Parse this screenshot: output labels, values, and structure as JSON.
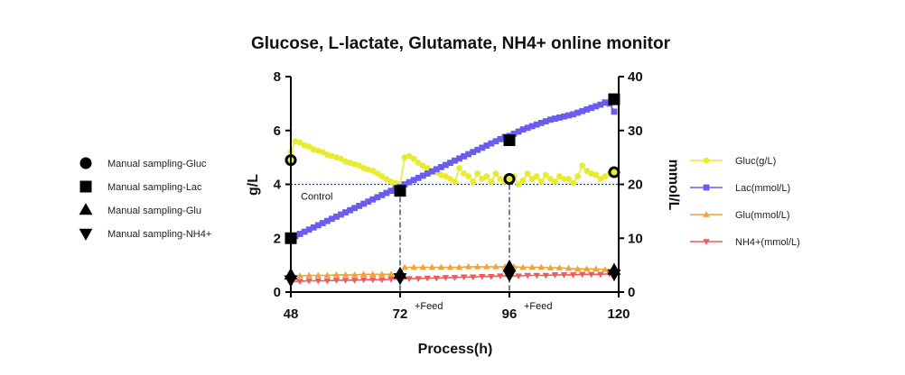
{
  "chart_data": {
    "type": "line",
    "title": "Glucose, L-lactate, Glutamate, NH4+ online monitor",
    "xlabel": "Process(h)",
    "ylabel_left": "g/L",
    "ylabel_right": "mmol/L",
    "xlim": [
      48,
      120
    ],
    "ylim_left": [
      0,
      8
    ],
    "ylim_right": [
      0,
      40
    ],
    "x_ticks": [
      "48",
      "72",
      "96",
      "120"
    ],
    "y_ticks_left": [
      "0",
      "2",
      "4",
      "6",
      "8"
    ],
    "y_ticks_right": [
      "0",
      "10",
      "20",
      "30",
      "40"
    ],
    "grid": false,
    "legend_position": "right",
    "annotations": {
      "control_label": "Control",
      "control_level_gL": 4,
      "feed_label_1": "+Feed",
      "feed_label_2": "+Feed",
      "feed_times_h": [
        72,
        96
      ]
    },
    "series": [
      {
        "name": "Gluc(g/L)",
        "axis": "left",
        "color": "#e8ec2e",
        "marker": "circle",
        "x": [
          48,
          49,
          50,
          51,
          52,
          53,
          54,
          55,
          56,
          57,
          58,
          59,
          60,
          61,
          62,
          63,
          64,
          65,
          66,
          67,
          68,
          69,
          70,
          71,
          72,
          73,
          74,
          75,
          76,
          77,
          78,
          79,
          80,
          81,
          82,
          83,
          84,
          85,
          86,
          87,
          88,
          89,
          90,
          91,
          92,
          93,
          94,
          95,
          96,
          97,
          98,
          99,
          100,
          101,
          102,
          103,
          104,
          105,
          106,
          107,
          108,
          109,
          110,
          111,
          112,
          113,
          114,
          115,
          116,
          117,
          118,
          119
        ],
        "values": [
          5.2,
          5.6,
          5.55,
          5.45,
          5.4,
          5.3,
          5.25,
          5.2,
          5.1,
          5.05,
          5.0,
          4.95,
          4.85,
          4.8,
          4.75,
          4.7,
          4.6,
          4.55,
          4.5,
          4.4,
          4.3,
          4.2,
          4.1,
          4.05,
          4.0,
          5.0,
          5.05,
          4.95,
          4.8,
          4.7,
          4.6,
          4.5,
          4.45,
          4.35,
          4.3,
          4.2,
          4.1,
          4.6,
          4.4,
          4.3,
          4.1,
          4.4,
          4.2,
          4.3,
          4.1,
          4.4,
          4.2,
          4.1,
          4.2,
          4.3,
          4.0,
          4.15,
          4.4,
          4.2,
          4.3,
          4.1,
          4.35,
          4.2,
          4.1,
          4.3,
          4.2,
          4.2,
          4.05,
          4.3,
          4.7,
          4.5,
          4.4,
          4.35,
          4.2,
          4.3,
          4.4,
          4.5
        ]
      },
      {
        "name": "Lac(mmol/L)",
        "axis": "right",
        "color": "#6b5cf0",
        "marker": "square",
        "x": [
          48,
          49,
          50,
          51,
          52,
          53,
          54,
          55,
          56,
          57,
          58,
          59,
          60,
          61,
          62,
          63,
          64,
          65,
          66,
          67,
          68,
          69,
          70,
          71,
          72,
          73,
          74,
          75,
          76,
          77,
          78,
          79,
          80,
          81,
          82,
          83,
          84,
          85,
          86,
          87,
          88,
          89,
          90,
          91,
          92,
          93,
          94,
          95,
          96,
          97,
          98,
          99,
          100,
          101,
          102,
          103,
          104,
          105,
          106,
          107,
          108,
          109,
          110,
          111,
          112,
          113,
          114,
          115,
          116,
          117,
          118,
          119
        ],
        "values": [
          10.0,
          10.4,
          10.8,
          11.2,
          11.6,
          12.0,
          12.4,
          12.8,
          13.2,
          13.6,
          14.0,
          14.4,
          14.8,
          15.2,
          15.6,
          16.0,
          16.4,
          16.8,
          17.2,
          17.6,
          18.0,
          18.4,
          18.8,
          19.2,
          19.5,
          20.0,
          20.4,
          20.8,
          21.2,
          21.6,
          22.0,
          22.4,
          22.8,
          23.2,
          23.6,
          24.0,
          24.4,
          24.8,
          25.2,
          25.6,
          26.0,
          26.4,
          26.8,
          27.2,
          27.6,
          28.0,
          28.4,
          28.8,
          29.0,
          29.4,
          29.8,
          30.2,
          30.5,
          30.8,
          31.1,
          31.4,
          31.7,
          32.0,
          32.2,
          32.4,
          32.6,
          32.8,
          33.0,
          33.3,
          33.6,
          33.9,
          34.2,
          34.5,
          34.8,
          35.2,
          35.0,
          33.5
        ]
      },
      {
        "name": "Glu(mmol/L)",
        "axis": "right",
        "color": "#f2a23c",
        "marker": "triangle-up",
        "x": [
          48,
          50,
          52,
          54,
          56,
          58,
          60,
          62,
          64,
          66,
          68,
          70,
          72,
          73,
          75,
          77,
          79,
          81,
          83,
          85,
          87,
          89,
          91,
          93,
          95,
          97,
          99,
          101,
          103,
          105,
          107,
          109,
          111,
          113,
          115,
          117,
          119
        ],
        "values": [
          3.0,
          3.0,
          3.1,
          3.1,
          3.1,
          3.2,
          3.2,
          3.2,
          3.3,
          3.3,
          3.3,
          3.3,
          3.4,
          4.6,
          4.6,
          4.6,
          4.6,
          4.6,
          4.6,
          4.6,
          4.7,
          4.7,
          4.7,
          4.7,
          4.7,
          4.7,
          4.6,
          4.6,
          4.6,
          4.5,
          4.5,
          4.4,
          4.3,
          4.3,
          4.3,
          4.2,
          4.2
        ]
      },
      {
        "name": "NH4+(mmol/L)",
        "axis": "right",
        "color": "#f05a5a",
        "marker": "triangle-down",
        "x": [
          48,
          50,
          52,
          54,
          56,
          58,
          60,
          62,
          64,
          66,
          68,
          70,
          72,
          74,
          76,
          78,
          80,
          82,
          84,
          86,
          88,
          90,
          92,
          94,
          96,
          98,
          100,
          102,
          104,
          106,
          108,
          110,
          112,
          114,
          116,
          118,
          119
        ],
        "values": [
          2.0,
          2.0,
          2.1,
          2.1,
          2.1,
          2.2,
          2.2,
          2.2,
          2.3,
          2.3,
          2.3,
          2.4,
          2.4,
          2.5,
          2.5,
          2.6,
          2.6,
          2.7,
          2.7,
          2.8,
          2.8,
          2.9,
          2.9,
          3.0,
          3.0,
          3.0,
          3.1,
          3.1,
          3.1,
          3.2,
          3.2,
          3.2,
          3.3,
          3.3,
          3.3,
          3.4,
          3.4
        ]
      }
    ],
    "manual_sampling": [
      {
        "name": "Manual sampling-Gluc",
        "marker": "circle",
        "axis": "left",
        "x": [
          48,
          96,
          119
        ],
        "values": [
          4.9,
          4.2,
          4.45
        ]
      },
      {
        "name": "Manual sampling-Lac",
        "marker": "square",
        "axis": "right",
        "x": [
          48,
          72,
          96,
          119
        ],
        "values": [
          10.0,
          18.8,
          28.2,
          35.8
        ]
      },
      {
        "name": "Manual sampling-Glu",
        "marker": "triangle-up",
        "axis": "right",
        "x": [
          48,
          72,
          96,
          119
        ],
        "values": [
          3.2,
          3.4,
          4.7,
          4.1
        ]
      },
      {
        "name": "Manual sampling-NH4+",
        "marker": "triangle-down",
        "axis": "right",
        "x": [
          48,
          72,
          96,
          119
        ],
        "values": [
          2.2,
          2.6,
          3.2,
          3.3
        ]
      }
    ]
  }
}
